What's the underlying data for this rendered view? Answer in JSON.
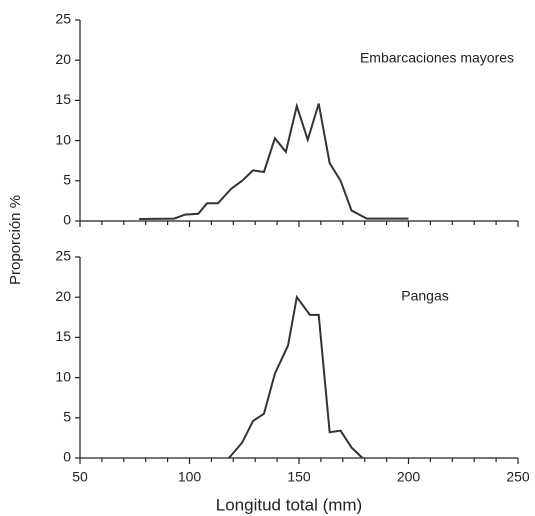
{
  "y_label": "Proporción %",
  "chart_data": [
    {
      "type": "line",
      "annotation": "Embarcaciones mayores",
      "x": [
        77,
        93,
        98,
        104,
        108,
        113,
        119,
        124,
        129,
        134,
        139,
        144,
        149,
        154,
        159,
        164,
        169,
        174,
        181,
        200
      ],
      "series": [
        {
          "color": "#333333",
          "values": [
            0.25,
            0.3,
            0.8,
            0.9,
            2.2,
            2.2,
            4,
            5,
            6.3,
            6.1,
            10.3,
            8.6,
            14.3,
            10.1,
            14.6,
            7.2,
            5,
            1.3,
            0.3,
            0.3
          ]
        }
      ],
      "xlim": [
        50,
        250
      ],
      "ylim": [
        0,
        25
      ],
      "xticks": [
        50,
        100,
        150,
        200,
        250
      ],
      "xminor": [
        60,
        70,
        80,
        90,
        110,
        120,
        130,
        140,
        160,
        170,
        180,
        190,
        210,
        220,
        230,
        240
      ],
      "yticks": [
        0,
        5,
        10,
        15,
        20,
        25
      ]
    },
    {
      "type": "line",
      "annotation": "Pangas",
      "x_label": "Longitud total (mm)",
      "x": [
        118,
        124,
        129,
        134,
        139,
        145,
        149,
        155,
        159,
        164,
        169,
        174,
        179
      ],
      "series": [
        {
          "color": "#333333",
          "values": [
            0,
            1.9,
            4.6,
            5.5,
            10.5,
            14,
            20,
            17.8,
            17.8,
            3.2,
            3.4,
            1.3,
            0
          ]
        }
      ],
      "xlim": [
        50,
        250
      ],
      "ylim": [
        0,
        25
      ],
      "xticks": [
        50,
        100,
        150,
        200,
        250
      ],
      "xminor": [
        60,
        70,
        80,
        90,
        110,
        120,
        130,
        140,
        160,
        170,
        180,
        190,
        210,
        220,
        230,
        240
      ],
      "yticks": [
        0,
        5,
        10,
        15,
        20,
        25
      ]
    }
  ]
}
